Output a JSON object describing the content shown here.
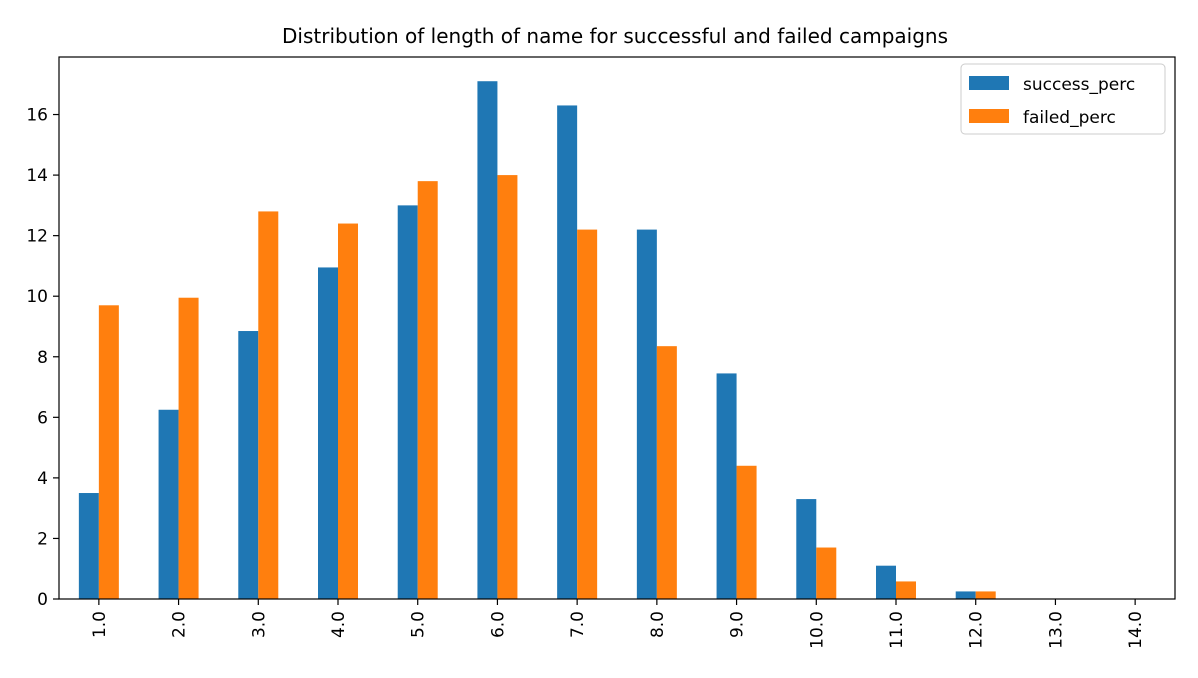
{
  "chart_data": {
    "type": "bar",
    "title": "Distribution of length of name for successful and failed campaigns",
    "xlabel": "",
    "ylabel": "",
    "categories": [
      "1.0",
      "2.0",
      "3.0",
      "4.0",
      "5.0",
      "6.0",
      "7.0",
      "8.0",
      "9.0",
      "10.0",
      "11.0",
      "12.0",
      "13.0",
      "14.0"
    ],
    "series": [
      {
        "name": "success_perc",
        "color": "#1f77b4",
        "values": [
          3.5,
          6.25,
          8.85,
          10.95,
          13.0,
          17.1,
          16.3,
          12.2,
          7.45,
          3.3,
          1.1,
          0.25,
          0.0,
          0.0
        ]
      },
      {
        "name": "failed_perc",
        "color": "#ff7f0e",
        "values": [
          9.7,
          9.95,
          12.8,
          12.4,
          13.8,
          14.0,
          12.2,
          8.35,
          4.4,
          1.7,
          0.58,
          0.25,
          0.0,
          0.0
        ]
      }
    ],
    "ylim": [
      0,
      17.9
    ],
    "yticks": [
      0,
      2,
      4,
      6,
      8,
      10,
      12,
      14,
      16
    ],
    "grid": false,
    "legend_position": "top-right"
  }
}
